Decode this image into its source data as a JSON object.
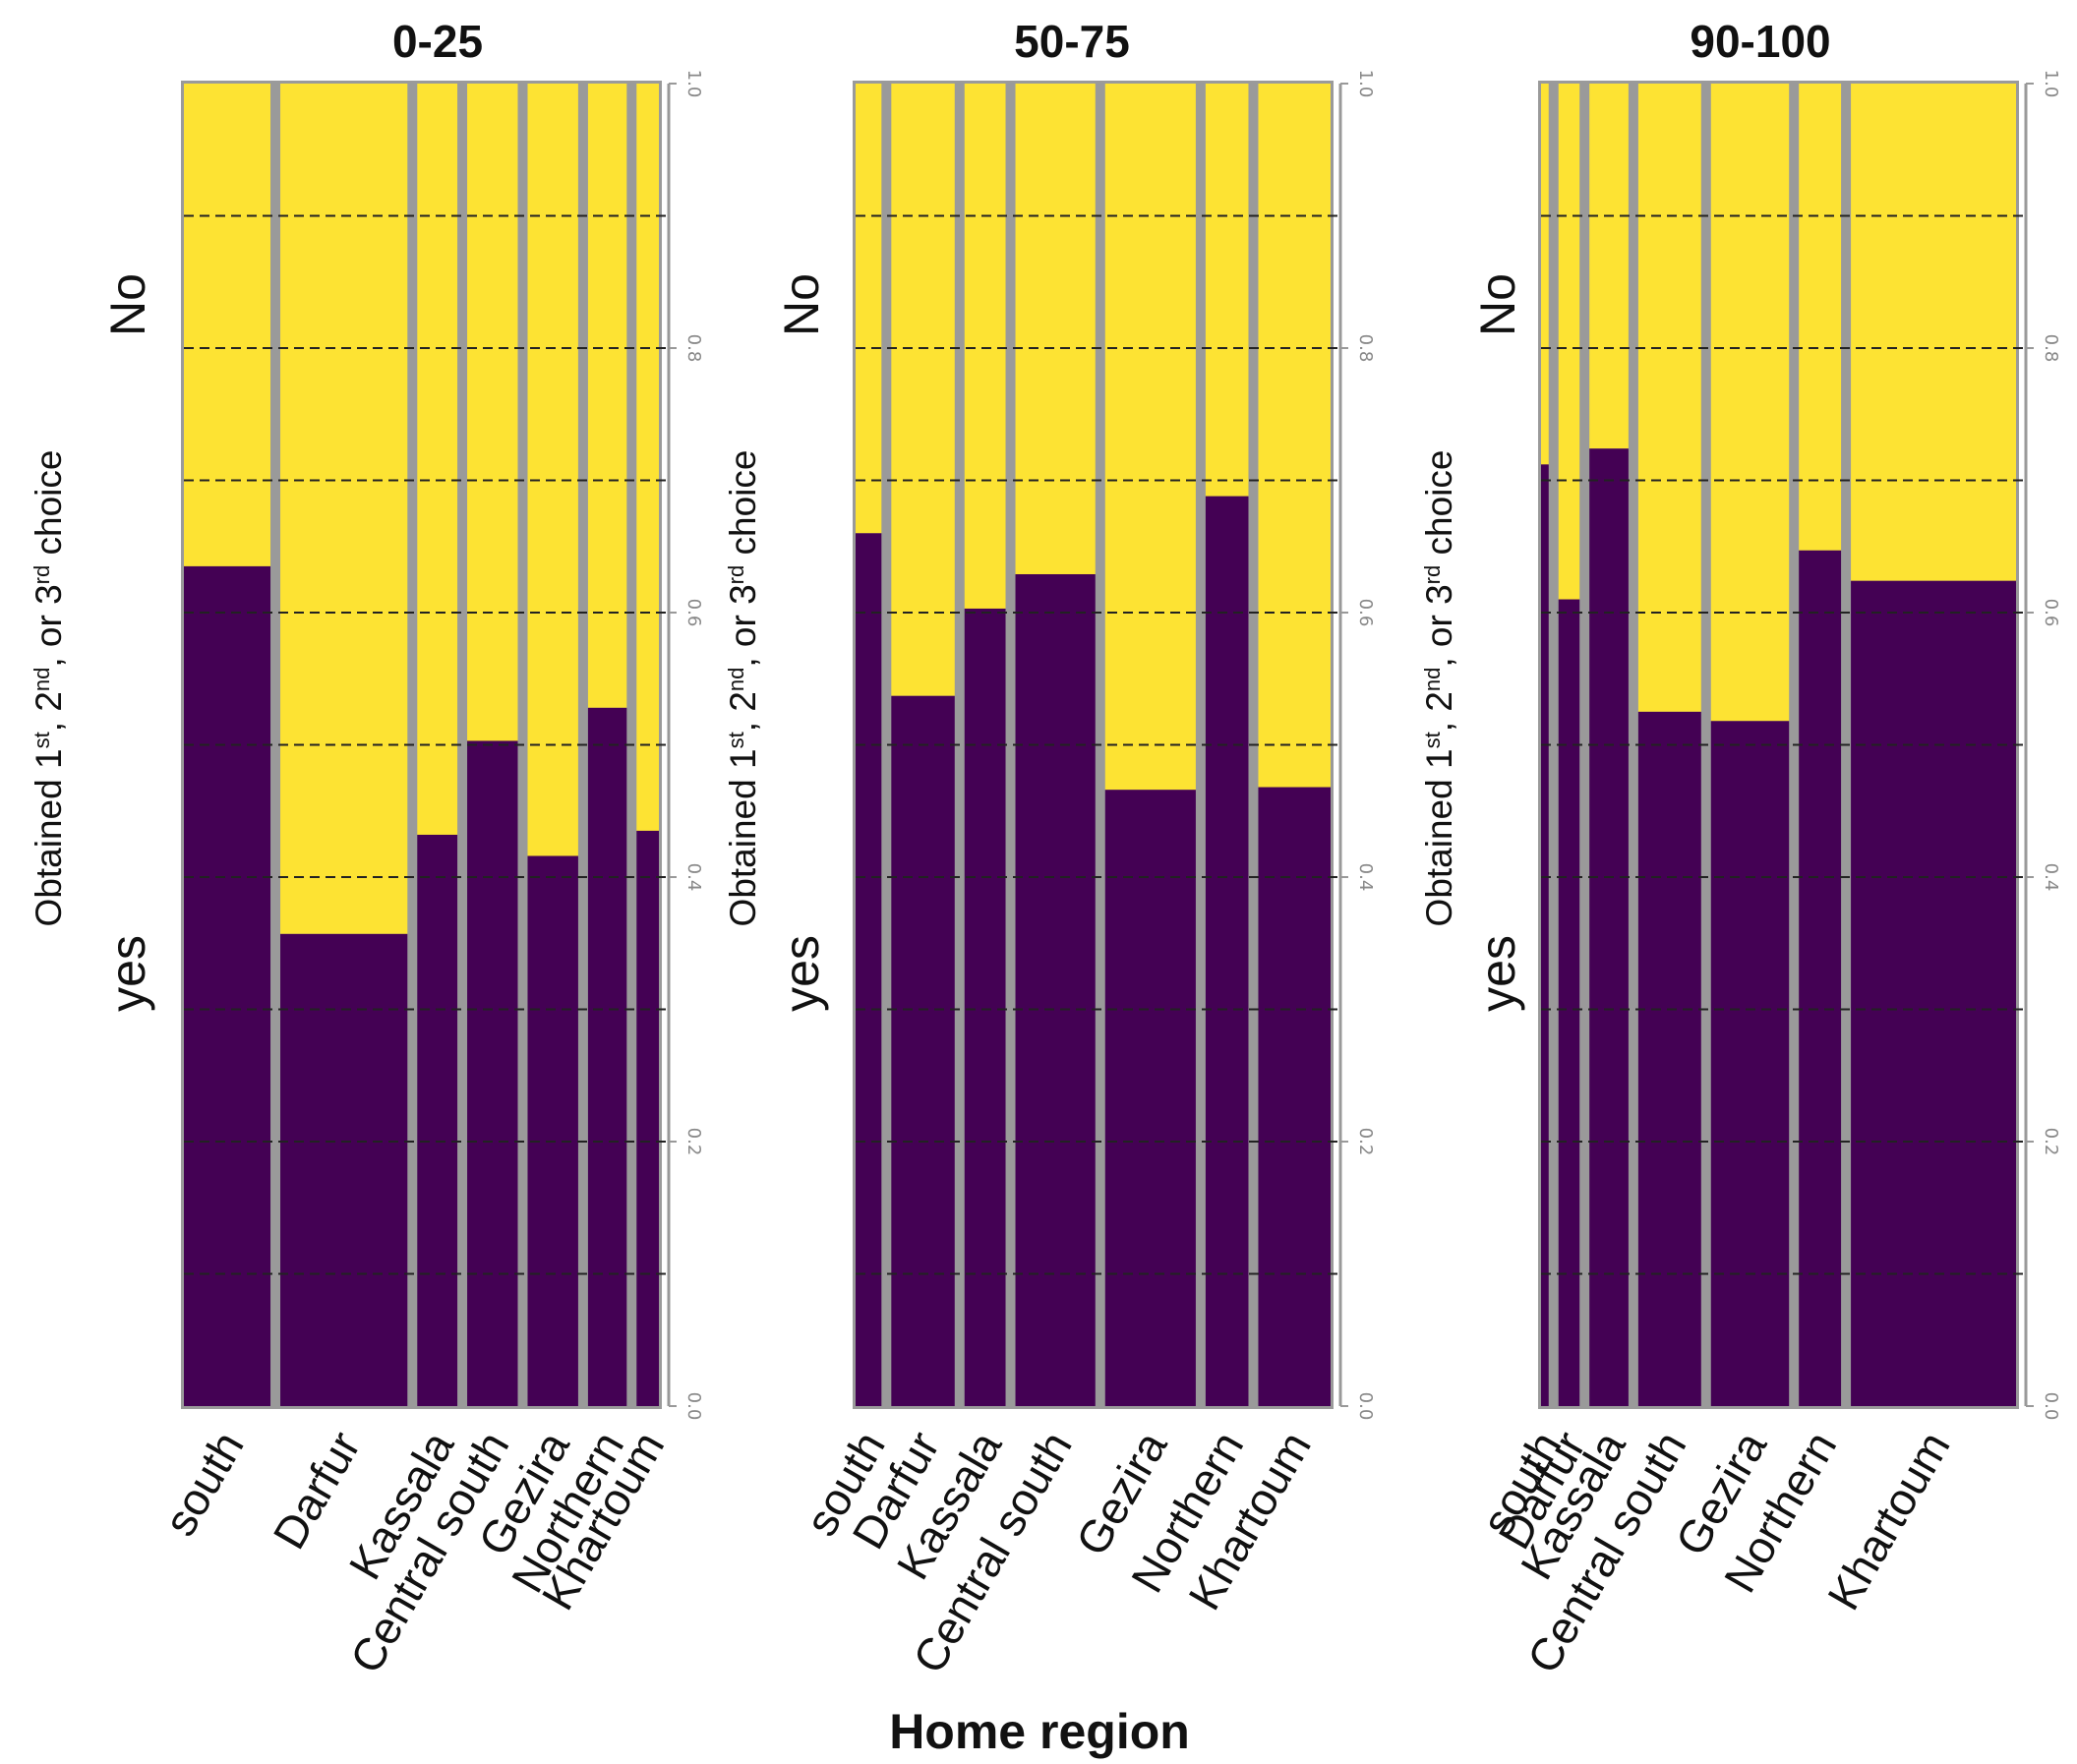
{
  "chart_data": {
    "type": "mosaic",
    "xlabel": "Home region",
    "ylabel_parts": [
      "Obtained 1",
      "st",
      ", 2",
      "nd",
      ", or 3",
      "rd",
      " choice"
    ],
    "yesno": {
      "no": "No",
      "yes": "yes"
    },
    "ylim": [
      0,
      1
    ],
    "ticks": [
      {
        "value": 0.0,
        "label": "0.0"
      },
      {
        "value": 0.2,
        "label": "0.2"
      },
      {
        "value": 0.4,
        "label": "0.4"
      },
      {
        "value": 0.6,
        "label": "0.6"
      },
      {
        "value": 0.8,
        "label": "0.8"
      },
      {
        "value": 1.0,
        "label": "1.0"
      }
    ],
    "gridlines": [
      0.1,
      0.2,
      0.3,
      0.4,
      0.5,
      0.6,
      0.7,
      0.8,
      0.9
    ],
    "colors": {
      "yes": "#440154",
      "no": "#FDE333",
      "separator": "#9a9a9a"
    },
    "panels": [
      {
        "title": "0-25",
        "categories": [
          {
            "label": "south",
            "share": 0.19,
            "yes": 0.635
          },
          {
            "label": "Darfur",
            "share": 0.279,
            "yes": 0.357
          },
          {
            "label": "Kassala",
            "share": 0.088,
            "yes": 0.432
          },
          {
            "label": "Central south",
            "share": 0.111,
            "yes": 0.503
          },
          {
            "label": "Gezira",
            "share": 0.111,
            "yes": 0.416
          },
          {
            "label": "Northern",
            "share": 0.085,
            "yes": 0.528
          },
          {
            "label": "Khartoum",
            "share": 0.049,
            "yes": 0.435
          }
        ]
      },
      {
        "title": "50-75",
        "categories": [
          {
            "label": "south",
            "share": 0.058,
            "yes": 0.66
          },
          {
            "label": "Darfur",
            "share": 0.142,
            "yes": 0.537
          },
          {
            "label": "Kassala",
            "share": 0.092,
            "yes": 0.603
          },
          {
            "label": "Central south",
            "share": 0.179,
            "yes": 0.629
          },
          {
            "label": "Gezira",
            "share": 0.203,
            "yes": 0.466
          },
          {
            "label": "Northern",
            "share": 0.096,
            "yes": 0.688
          },
          {
            "label": "Khartoum",
            "share": 0.162,
            "yes": 0.468
          }
        ]
      },
      {
        "title": "90-100",
        "categories": [
          {
            "label": "south",
            "share": 0.017,
            "yes": 0.712
          },
          {
            "label": "Darfur",
            "share": 0.047,
            "yes": 0.61
          },
          {
            "label": "Kassala",
            "share": 0.087,
            "yes": 0.724
          },
          {
            "label": "Central south",
            "share": 0.14,
            "yes": 0.525
          },
          {
            "label": "Gezira",
            "share": 0.174,
            "yes": 0.518
          },
          {
            "label": "Northern",
            "share": 0.094,
            "yes": 0.647
          },
          {
            "label": "Khartoum",
            "share": 0.368,
            "yes": 0.624
          }
        ]
      }
    ]
  }
}
